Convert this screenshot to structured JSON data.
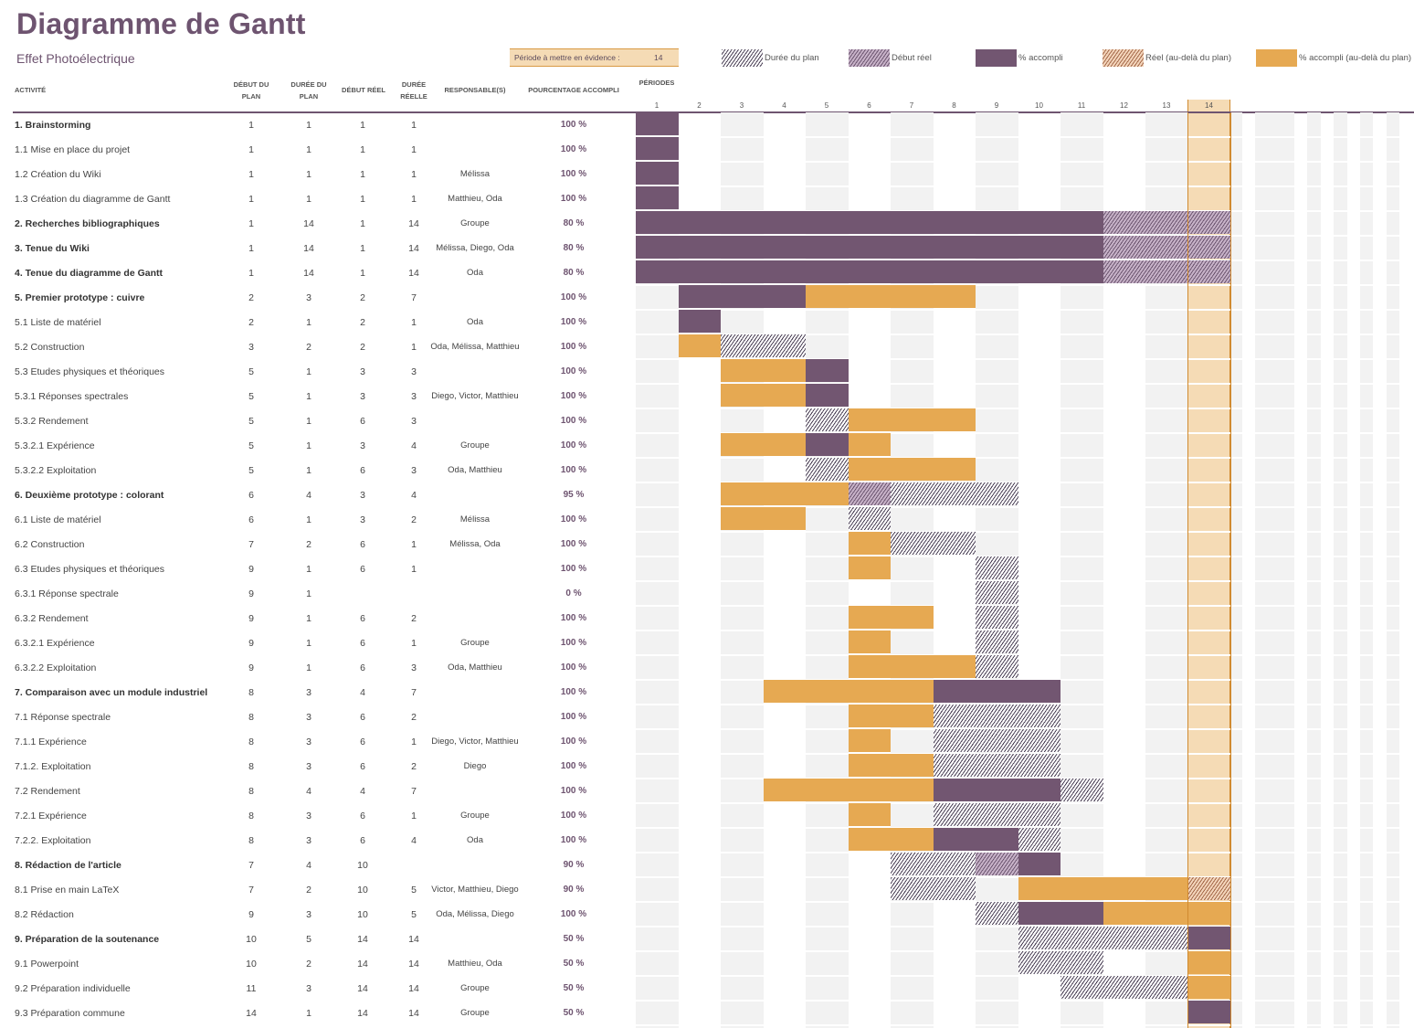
{
  "header": {
    "title": "Diagramme de Gantt",
    "subtitle": "Effet Photoélectrique",
    "highlight_label": "Période à mettre en évidence :",
    "highlight_value": "14"
  },
  "legend": [
    {
      "label": "Durée du plan",
      "type": "plan"
    },
    {
      "label": "Début réel",
      "type": "real"
    },
    {
      "label": "% accompli",
      "type": "acc"
    },
    {
      "label": "Réel (au-delà du plan)",
      "type": "beyond_hatch"
    },
    {
      "label": "% accompli (au-delà du plan)",
      "type": "beyond"
    }
  ],
  "columns": {
    "activity": "ACTIVITÉ",
    "plan_start": "DÉBUT DU PLAN",
    "plan_duration": "DURÉE DU PLAN",
    "real_start": "DÉBUT RÉEL",
    "real_duration": "DURÉE RÉELLE",
    "responsible": "RESPONSABLE(S)",
    "percent": "POURCENTAGE ACCOMPLI",
    "periods": "PÉRIODES"
  },
  "colors": {
    "accent": "#6e5470",
    "accompli": "#725671",
    "beyond": "#e6a952",
    "highlight": "#f5dbb5"
  },
  "chart_data": {
    "type": "gantt",
    "title": "Diagramme de Gantt",
    "periods": [
      "1",
      "2",
      "3",
      "4",
      "5",
      "6",
      "7",
      "8",
      "9",
      "10",
      "11",
      "12",
      "13",
      "14"
    ],
    "highlight_period": 14,
    "tasks": [
      {
        "activity": "1. Brainstorming",
        "bold": true,
        "plan_start": "1",
        "plan_duration": "1",
        "real_start": "1",
        "real_duration": "1",
        "responsible": "",
        "percent": "100 %",
        "segments": [
          [
            1,
            1,
            "acc"
          ]
        ]
      },
      {
        "activity": "1.1 Mise en place du projet",
        "bold": false,
        "plan_start": "1",
        "plan_duration": "1",
        "real_start": "1",
        "real_duration": "1",
        "responsible": "",
        "percent": "100 %",
        "segments": [
          [
            1,
            1,
            "acc"
          ]
        ]
      },
      {
        "activity": "1.2 Création du Wiki",
        "bold": false,
        "plan_start": "1",
        "plan_duration": "1",
        "real_start": "1",
        "real_duration": "1",
        "responsible": "Mélissa",
        "percent": "100 %",
        "segments": [
          [
            1,
            1,
            "acc"
          ]
        ]
      },
      {
        "activity": "1.3 Création du diagramme de Gantt",
        "bold": false,
        "plan_start": "1",
        "plan_duration": "1",
        "real_start": "1",
        "real_duration": "1",
        "responsible": "Matthieu, Oda",
        "percent": "100 %",
        "segments": [
          [
            1,
            1,
            "acc"
          ]
        ]
      },
      {
        "activity": "2. Recherches bibliographiques",
        "bold": true,
        "plan_start": "1",
        "plan_duration": "14",
        "real_start": "1",
        "real_duration": "14",
        "responsible": "Groupe",
        "percent": "80 %",
        "segments": [
          [
            1,
            11,
            "acc"
          ],
          [
            12,
            14,
            "real"
          ]
        ]
      },
      {
        "activity": "3. Tenue du Wiki",
        "bold": true,
        "plan_start": "1",
        "plan_duration": "14",
        "real_start": "1",
        "real_duration": "14",
        "responsible": "Mélissa, Diego, Oda",
        "percent": "80 %",
        "segments": [
          [
            1,
            11,
            "acc"
          ],
          [
            12,
            14,
            "real"
          ]
        ]
      },
      {
        "activity": "4. Tenue du diagramme de Gantt",
        "bold": true,
        "plan_start": "1",
        "plan_duration": "14",
        "real_start": "1",
        "real_duration": "14",
        "responsible": "Oda",
        "percent": "80 %",
        "segments": [
          [
            1,
            11,
            "acc"
          ],
          [
            12,
            14,
            "real"
          ]
        ]
      },
      {
        "activity": "5. Premier prototype : cuivre",
        "bold": true,
        "plan_start": "2",
        "plan_duration": "3",
        "real_start": "2",
        "real_duration": "7",
        "responsible": "",
        "percent": "100 %",
        "segments": [
          [
            2,
            4,
            "acc"
          ],
          [
            5,
            8,
            "beyond"
          ]
        ]
      },
      {
        "activity": "5.1 Liste de matériel",
        "bold": false,
        "plan_start": "2",
        "plan_duration": "1",
        "real_start": "2",
        "real_duration": "1",
        "responsible": "Oda",
        "percent": "100 %",
        "segments": [
          [
            2,
            2,
            "acc"
          ]
        ]
      },
      {
        "activity": "5.2 Construction",
        "bold": false,
        "plan_start": "3",
        "plan_duration": "2",
        "real_start": "2",
        "real_duration": "1",
        "responsible": "Oda, Mélissa, Matthieu",
        "percent": "100 %",
        "segments": [
          [
            2,
            2,
            "beyond"
          ],
          [
            3,
            4,
            "plan"
          ]
        ]
      },
      {
        "activity": "5.3 Etudes physiques et théoriques",
        "bold": false,
        "plan_start": "5",
        "plan_duration": "1",
        "real_start": "3",
        "real_duration": "3",
        "responsible": "",
        "percent": "100 %",
        "segments": [
          [
            3,
            4,
            "beyond"
          ],
          [
            5,
            5,
            "acc"
          ]
        ]
      },
      {
        "activity": "5.3.1 Réponses spectrales",
        "bold": false,
        "plan_start": "5",
        "plan_duration": "1",
        "real_start": "3",
        "real_duration": "3",
        "responsible": "Diego, Victor, Matthieu",
        "percent": "100 %",
        "segments": [
          [
            3,
            4,
            "beyond"
          ],
          [
            5,
            5,
            "acc"
          ]
        ]
      },
      {
        "activity": "5.3.2 Rendement",
        "bold": false,
        "plan_start": "5",
        "plan_duration": "1",
        "real_start": "6",
        "real_duration": "3",
        "responsible": "",
        "percent": "100 %",
        "segments": [
          [
            5,
            5,
            "plan"
          ],
          [
            6,
            8,
            "beyond"
          ]
        ]
      },
      {
        "activity": "5.3.2.1 Expérience",
        "bold": false,
        "plan_start": "5",
        "plan_duration": "1",
        "real_start": "3",
        "real_duration": "4",
        "responsible": "Groupe",
        "percent": "100 %",
        "segments": [
          [
            3,
            4,
            "beyond"
          ],
          [
            5,
            5,
            "acc"
          ],
          [
            6,
            6,
            "beyond"
          ]
        ]
      },
      {
        "activity": "5.3.2.2 Exploitation",
        "bold": false,
        "plan_start": "5",
        "plan_duration": "1",
        "real_start": "6",
        "real_duration": "3",
        "responsible": "Oda, Matthieu",
        "percent": "100 %",
        "segments": [
          [
            5,
            5,
            "plan"
          ],
          [
            6,
            8,
            "beyond"
          ]
        ]
      },
      {
        "activity": "6. Deuxième prototype : colorant",
        "bold": true,
        "plan_start": "6",
        "plan_duration": "4",
        "real_start": "3",
        "real_duration": "4",
        "responsible": "",
        "percent": "95 %",
        "segments": [
          [
            3,
            5,
            "beyond"
          ],
          [
            6,
            6,
            "real"
          ],
          [
            7,
            9,
            "plan"
          ]
        ]
      },
      {
        "activity": "6.1 Liste de matériel",
        "bold": false,
        "plan_start": "6",
        "plan_duration": "1",
        "real_start": "3",
        "real_duration": "2",
        "responsible": "Mélissa",
        "percent": "100 %",
        "segments": [
          [
            3,
            4,
            "beyond"
          ],
          [
            6,
            6,
            "plan"
          ]
        ]
      },
      {
        "activity": "6.2 Construction",
        "bold": false,
        "plan_start": "7",
        "plan_duration": "2",
        "real_start": "6",
        "real_duration": "1",
        "responsible": "Mélissa, Oda",
        "percent": "100 %",
        "segments": [
          [
            6,
            6,
            "beyond"
          ],
          [
            7,
            8,
            "plan"
          ]
        ]
      },
      {
        "activity": "6.3 Etudes physiques et théoriques",
        "bold": false,
        "plan_start": "9",
        "plan_duration": "1",
        "real_start": "6",
        "real_duration": "1",
        "responsible": "",
        "percent": "100 %",
        "segments": [
          [
            6,
            6,
            "beyond"
          ],
          [
            9,
            9,
            "plan"
          ]
        ]
      },
      {
        "activity": "6.3.1 Réponse spectrale",
        "bold": false,
        "plan_start": "9",
        "plan_duration": "1",
        "real_start": "",
        "real_duration": "",
        "responsible": "",
        "percent": "0 %",
        "segments": [
          [
            9,
            9,
            "plan"
          ]
        ]
      },
      {
        "activity": "6.3.2 Rendement",
        "bold": false,
        "plan_start": "9",
        "plan_duration": "1",
        "real_start": "6",
        "real_duration": "2",
        "responsible": "",
        "percent": "100 %",
        "segments": [
          [
            6,
            7,
            "beyond"
          ],
          [
            9,
            9,
            "plan"
          ]
        ]
      },
      {
        "activity": "6.3.2.1 Expérience",
        "bold": false,
        "plan_start": "9",
        "plan_duration": "1",
        "real_start": "6",
        "real_duration": "1",
        "responsible": "Groupe",
        "percent": "100 %",
        "segments": [
          [
            6,
            6,
            "beyond"
          ],
          [
            9,
            9,
            "plan"
          ]
        ]
      },
      {
        "activity": "6.3.2.2 Exploitation",
        "bold": false,
        "plan_start": "9",
        "plan_duration": "1",
        "real_start": "6",
        "real_duration": "3",
        "responsible": "Oda, Matthieu",
        "percent": "100 %",
        "segments": [
          [
            6,
            8,
            "beyond"
          ],
          [
            9,
            9,
            "plan"
          ]
        ]
      },
      {
        "activity": "7. Comparaison avec un module industriel",
        "bold": true,
        "plan_start": "8",
        "plan_duration": "3",
        "real_start": "4",
        "real_duration": "7",
        "responsible": "",
        "percent": "100 %",
        "segments": [
          [
            4,
            7,
            "beyond"
          ],
          [
            8,
            10,
            "acc"
          ]
        ]
      },
      {
        "activity": "7.1 Réponse spectrale",
        "bold": false,
        "plan_start": "8",
        "plan_duration": "3",
        "real_start": "6",
        "real_duration": "2",
        "responsible": "",
        "percent": "100 %",
        "segments": [
          [
            6,
            7,
            "beyond"
          ],
          [
            8,
            10,
            "plan"
          ]
        ]
      },
      {
        "activity": "7.1.1 Expérience",
        "bold": false,
        "plan_start": "8",
        "plan_duration": "3",
        "real_start": "6",
        "real_duration": "1",
        "responsible": "Diego, Victor, Matthieu",
        "percent": "100 %",
        "segments": [
          [
            6,
            6,
            "beyond"
          ],
          [
            8,
            10,
            "plan"
          ]
        ]
      },
      {
        "activity": "7.1.2. Exploitation",
        "bold": false,
        "plan_start": "8",
        "plan_duration": "3",
        "real_start": "6",
        "real_duration": "2",
        "responsible": "Diego",
        "percent": "100 %",
        "segments": [
          [
            6,
            7,
            "beyond"
          ],
          [
            8,
            10,
            "plan"
          ]
        ]
      },
      {
        "activity": "7.2 Rendement",
        "bold": false,
        "plan_start": "8",
        "plan_duration": "4",
        "real_start": "4",
        "real_duration": "7",
        "responsible": "",
        "percent": "100 %",
        "segments": [
          [
            4,
            7,
            "beyond"
          ],
          [
            8,
            10,
            "acc"
          ],
          [
            11,
            11,
            "plan"
          ]
        ]
      },
      {
        "activity": "7.2.1 Expérience",
        "bold": false,
        "plan_start": "8",
        "plan_duration": "3",
        "real_start": "6",
        "real_duration": "1",
        "responsible": "Groupe",
        "percent": "100 %",
        "segments": [
          [
            6,
            6,
            "beyond"
          ],
          [
            8,
            10,
            "plan"
          ]
        ]
      },
      {
        "activity": "7.2.2. Exploitation",
        "bold": false,
        "plan_start": "8",
        "plan_duration": "3",
        "real_start": "6",
        "real_duration": "4",
        "responsible": "Oda",
        "percent": "100 %",
        "segments": [
          [
            6,
            7,
            "beyond"
          ],
          [
            8,
            9,
            "acc"
          ],
          [
            10,
            10,
            "plan"
          ]
        ]
      },
      {
        "activity": "8. Rédaction de l'article",
        "bold": true,
        "plan_start": "7",
        "plan_duration": "4",
        "real_start": "10",
        "real_duration": "",
        "responsible": "",
        "percent": "90 %",
        "segments": [
          [
            7,
            8,
            "plan"
          ],
          [
            9,
            9,
            "real"
          ],
          [
            10,
            10,
            "acc"
          ]
        ]
      },
      {
        "activity": "8.1 Prise en main LaTeX",
        "bold": false,
        "plan_start": "7",
        "plan_duration": "2",
        "real_start": "10",
        "real_duration": "5",
        "responsible": "Victor, Matthieu, Diego",
        "percent": "90 %",
        "segments": [
          [
            7,
            8,
            "plan"
          ],
          [
            10,
            13,
            "beyond"
          ],
          [
            14,
            14,
            "beyond_hatch"
          ]
        ]
      },
      {
        "activity": "8.2 Rédaction",
        "bold": false,
        "plan_start": "9",
        "plan_duration": "3",
        "real_start": "10",
        "real_duration": "5",
        "responsible": "Oda, Mélissa, Diego",
        "percent": "100 %",
        "segments": [
          [
            9,
            9,
            "plan"
          ],
          [
            10,
            11,
            "acc"
          ],
          [
            12,
            14,
            "beyond"
          ]
        ]
      },
      {
        "activity": "9. Préparation de la soutenance",
        "bold": true,
        "plan_start": "10",
        "plan_duration": "5",
        "real_start": "14",
        "real_duration": "14",
        "responsible": "",
        "percent": "50 %",
        "segments": [
          [
            10,
            13,
            "plan"
          ],
          [
            14,
            14,
            "acc"
          ]
        ]
      },
      {
        "activity": "9.1 Powerpoint",
        "bold": false,
        "plan_start": "10",
        "plan_duration": "2",
        "real_start": "14",
        "real_duration": "14",
        "responsible": "Matthieu, Oda",
        "percent": "50 %",
        "segments": [
          [
            10,
            11,
            "plan"
          ],
          [
            14,
            14,
            "beyond"
          ]
        ]
      },
      {
        "activity": "9.2 Préparation individuelle",
        "bold": false,
        "plan_start": "11",
        "plan_duration": "3",
        "real_start": "14",
        "real_duration": "14",
        "responsible": "Groupe",
        "percent": "50 %",
        "segments": [
          [
            11,
            13,
            "plan"
          ],
          [
            14,
            14,
            "beyond"
          ]
        ]
      },
      {
        "activity": "9.3 Préparation commune",
        "bold": false,
        "plan_start": "14",
        "plan_duration": "1",
        "real_start": "14",
        "real_duration": "14",
        "responsible": "Groupe",
        "percent": "50 %",
        "segments": [
          [
            14,
            14,
            "acc"
          ]
        ]
      }
    ]
  }
}
